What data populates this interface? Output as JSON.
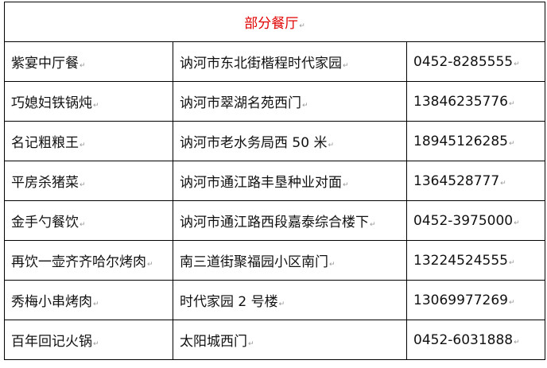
{
  "title": "部分餐厅",
  "colors": {
    "title": "#e00000"
  },
  "paragraph_mark": "↵",
  "rows": [
    {
      "name": "紫宴中厅餐",
      "address": "讷河市东北街楷程时代家园",
      "phone": "0452-8285555"
    },
    {
      "name": "巧媳妇铁锅炖",
      "address": "讷河市翠湖名苑西门",
      "phone": "13846235776"
    },
    {
      "name": "名记粗粮王",
      "address": "讷河市老水务局西 50 米",
      "phone": "18945126285"
    },
    {
      "name": "平房杀猪菜",
      "address": "讷河市通江路丰垦种业对面",
      "phone": "1364528777"
    },
    {
      "name": "金手勺餐饮",
      "address": "讷河市通江路西段嘉泰综合楼下",
      "phone": "0452-3975000"
    },
    {
      "name": "再饮一壶齐齐哈尔烤肉",
      "address": "南三道街聚福园小区南门",
      "phone": "13224524555"
    },
    {
      "name": "秀梅小串烤肉",
      "address": "时代家园 2 号楼",
      "phone": "13069977269"
    },
    {
      "name": "百年回记火锅",
      "address": "太阳城西门",
      "phone": "0452-6031888"
    }
  ]
}
